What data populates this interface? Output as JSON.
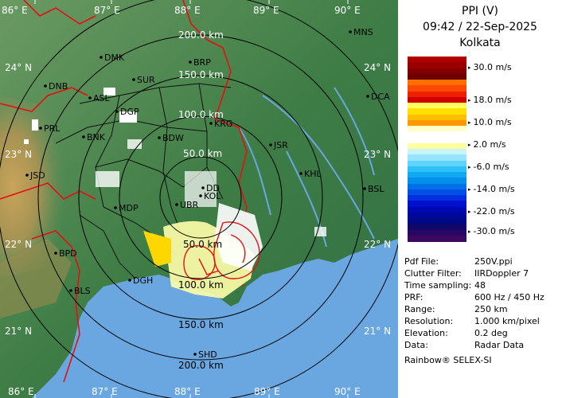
{
  "title": "PPI (V)",
  "datetime": "09:42 / 22-Sep-2025",
  "station": "Kolkata",
  "legend": [
    {
      "label": "30.0 m/s",
      "colors": [
        "#b00000",
        "#9a0000",
        "#820000",
        "#6a0000"
      ]
    },
    {
      "label": "18.0 m/s",
      "colors": [
        "#ff7000",
        "#ff4800",
        "#ee2000",
        "#d00000"
      ]
    },
    {
      "label": "10.0 m/s",
      "colors": [
        "#ffff60",
        "#ffe000",
        "#ffbe00",
        "#ff9800"
      ]
    },
    {
      "label": "2.0 m/s",
      "colors": [
        "#ffffc8",
        "#ffffff",
        "#ffffff",
        "#ffffa0"
      ]
    },
    {
      "label": "-6.0 m/s",
      "colors": [
        "#c8f4ff",
        "#98e4ff",
        "#60d4ff",
        "#30c0f8"
      ]
    },
    {
      "label": "-14.0 m/s",
      "colors": [
        "#10a8f0",
        "#0090ec",
        "#0070e8",
        "#0050e8"
      ]
    },
    {
      "label": "-22.0 m/s",
      "colors": [
        "#0030e0",
        "#0010cc",
        "#0008b4",
        "#00089c"
      ]
    },
    {
      "label": "-30.0 m/s",
      "colors": [
        "#000884",
        "#10086c",
        "#280860",
        "#3c0860"
      ]
    }
  ],
  "info": [
    {
      "key": "Pdf File:",
      "value": "250V.ppi"
    },
    {
      "key": "Clutter Filter:",
      "value": "IIRDoppler 7"
    },
    {
      "key": "Time sampling:",
      "value": "48"
    },
    {
      "key": "PRF:",
      "value": "600 Hz / 450 Hz"
    },
    {
      "key": "Range:",
      "value": "250 km"
    },
    {
      "key": "Resolution:",
      "value": "1.000 km/pixel"
    },
    {
      "key": "Elevation:",
      "value": "0.2 deg"
    },
    {
      "key": "Data:",
      "value": "Radar Data"
    }
  ],
  "credit": "Rainbow® SELEX-SI",
  "map": {
    "lon_labels_top": [
      "86° E",
      "87° E",
      "88° E",
      "89° E",
      "90° E"
    ],
    "lon_labels_bottom": [
      "86° E",
      "87° E",
      "88° E",
      "89° E",
      "90° E"
    ],
    "lat_labels_left": [
      "24° N",
      "23° N",
      "22° N",
      "21° N"
    ],
    "lat_labels_right": [
      "24° N",
      "23° N",
      "22° N",
      "21° N"
    ],
    "range_labels": [
      "200.0 km",
      "150.0 km",
      "100.0 km",
      "50.0 km"
    ],
    "range_labels_south": [
      "50.0 km",
      "100.0 km",
      "150.0 km",
      "200.0 km"
    ],
    "cities": [
      "MNS",
      "DMK",
      "BRP",
      "DNB",
      "SUR",
      "DCA",
      "ASL",
      "DGP",
      "KRG",
      "PRL",
      "BNK",
      "BDW",
      "JSR",
      "KHL",
      "JSD",
      "DD",
      "KOL",
      "BSL",
      "MDP",
      "UBR",
      "BPD",
      "DGH",
      "BLS",
      "SHD"
    ],
    "colors": {
      "sea": "#6aa6e0",
      "land": "#3f7d46",
      "border": "#e51010",
      "district": "#111111",
      "ring": "#000000"
    }
  }
}
